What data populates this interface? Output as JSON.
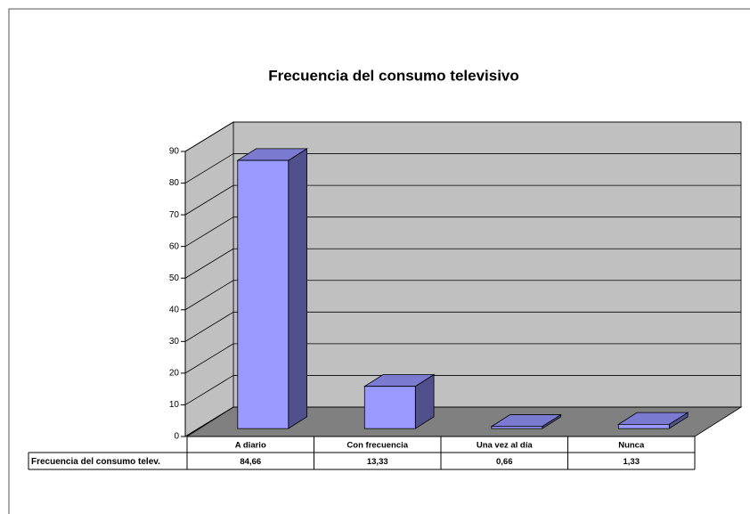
{
  "chart_data": {
    "type": "bar3d",
    "title": "Frecuencia del consumo televisivo",
    "categories": [
      "A diario",
      "Con frecuencia",
      "Una vez al día",
      "Nunca"
    ],
    "series": [
      {
        "name": "Frecuencia del consumo telev.",
        "color": "#9999ff",
        "values": [
          84.66,
          13.33,
          0.66,
          1.33
        ],
        "value_labels": [
          "84,66",
          "13,33",
          "0,66",
          "1,33"
        ]
      }
    ],
    "ylim": [
      0,
      90
    ],
    "yticks": [
      0,
      10,
      20,
      30,
      40,
      50,
      60,
      70,
      80,
      90
    ],
    "grid": true
  }
}
